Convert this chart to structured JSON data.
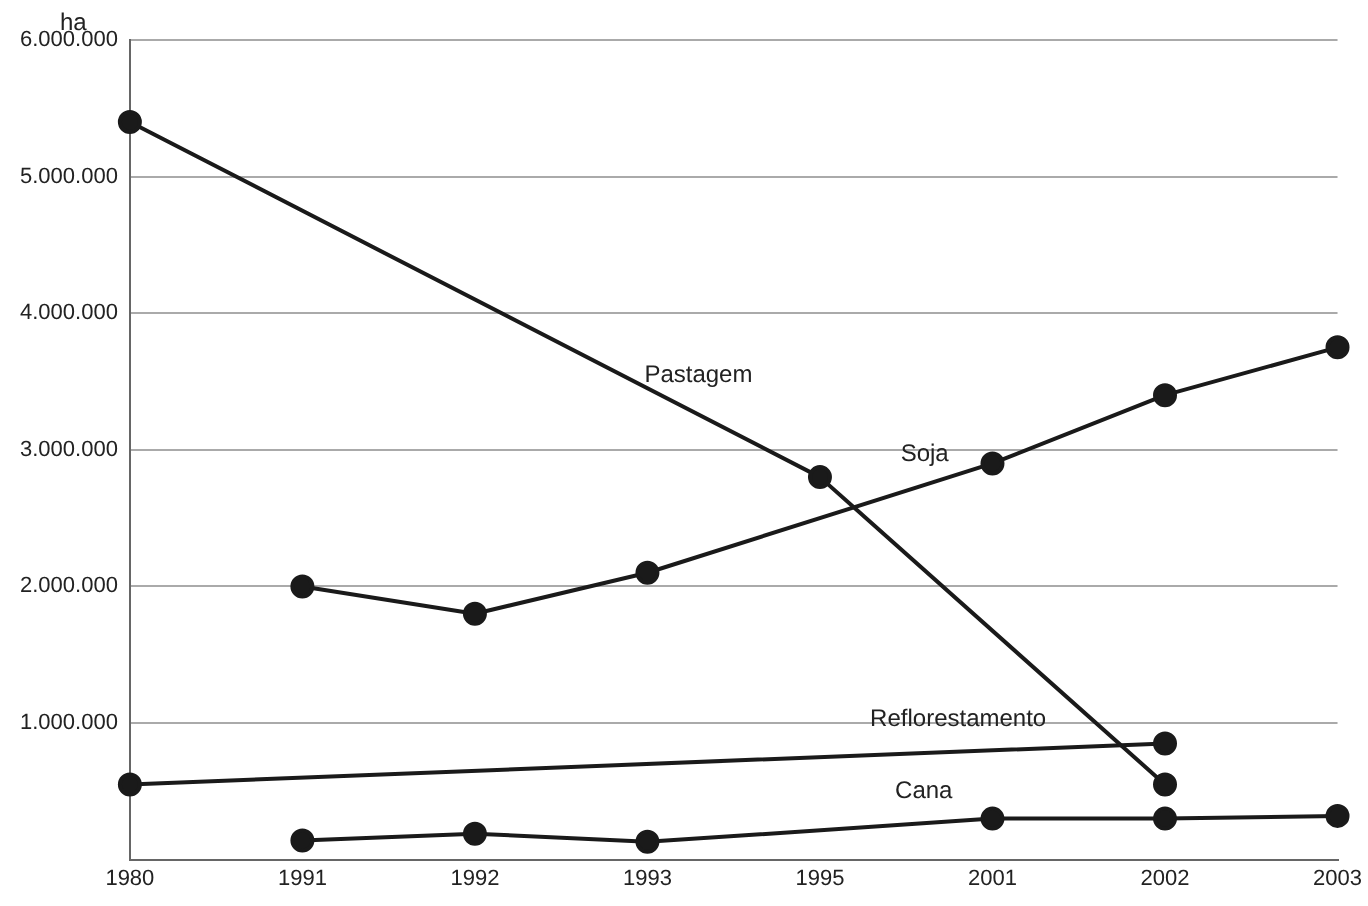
{
  "chart_data": {
    "type": "line",
    "ylabel": "ha",
    "categories": [
      "1980",
      "1991",
      "1992",
      "1993",
      "1995",
      "2001",
      "2002",
      "2003"
    ],
    "series": [
      {
        "name": "Pastagem",
        "color": "#1a1a1a",
        "values": [
          5400000,
          null,
          null,
          null,
          2800000,
          null,
          550000,
          null
        ]
      },
      {
        "name": "Soja",
        "color": "#1a1a1a",
        "values": [
          null,
          2000000,
          1800000,
          2100000,
          null,
          2900000,
          3400000,
          3750000
        ]
      },
      {
        "name": "Reflorestamento",
        "color": "#1a1a1a",
        "values": [
          550000,
          null,
          null,
          null,
          null,
          null,
          850000,
          null
        ]
      },
      {
        "name": "Cana",
        "color": "#1a1a1a",
        "values": [
          null,
          140000,
          190000,
          130000,
          null,
          300000,
          300000,
          320000
        ]
      }
    ],
    "ylim": [
      0,
      6000000
    ],
    "yticks": [
      {
        "value": 0,
        "label": null
      },
      {
        "value": 1000000,
        "label": "1.000.000"
      },
      {
        "value": 2000000,
        "label": "2.000.000"
      },
      {
        "value": 3000000,
        "label": "3.000.000"
      },
      {
        "value": 4000000,
        "label": "4.000.000"
      },
      {
        "value": 5000000,
        "label": "5.000.000"
      },
      {
        "value": 6000000,
        "label": "6.000.000"
      }
    ],
    "grid": "y",
    "legend": false,
    "marker": "circle",
    "line_style": "solid"
  }
}
